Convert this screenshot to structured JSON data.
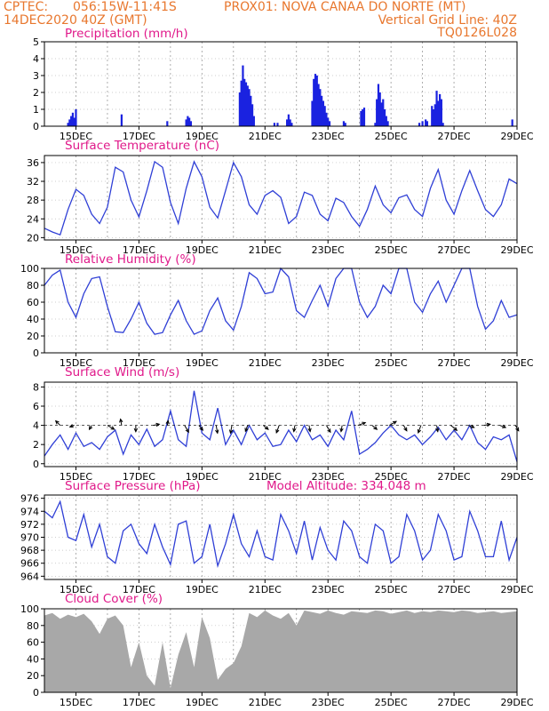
{
  "header": {
    "line1_left": "CPTEC:",
    "line1_coords": "056:15W-11:41S",
    "line1_station": "PROX01: NOVA CANAA DO NORTE (MT)",
    "line2_left": "14DEC2020 40Z (GMT)",
    "line2_right": "Vertical Grid Line: 40Z",
    "line3_right": "TQ0126L028"
  },
  "x_axis": {
    "labels": [
      "15DEC",
      "17DEC",
      "19DEC",
      "21DEC",
      "23DEC",
      "25DEC",
      "27DEC",
      "29DEC"
    ],
    "label_days": [
      15,
      17,
      19,
      21,
      23,
      25,
      27,
      29
    ],
    "grid_days": [
      15,
      16,
      17,
      18,
      19,
      20,
      21,
      22,
      23,
      24,
      25,
      26,
      27,
      28
    ],
    "range_days": [
      14,
      29
    ]
  },
  "chart_data": [
    {
      "type": "bar",
      "title": "Precipitation (mm/h)",
      "color": "#1a22e0",
      "ylim": [
        0,
        5
      ],
      "yticks": [
        0,
        1,
        2,
        3,
        4,
        5
      ],
      "x": [
        14.75,
        14.8,
        14.85,
        14.9,
        14.95,
        15.0,
        16.45,
        17.9,
        18.5,
        18.55,
        18.6,
        18.65,
        20.2,
        20.25,
        20.3,
        20.35,
        20.4,
        20.45,
        20.5,
        20.55,
        20.6,
        20.65,
        21.3,
        21.4,
        21.7,
        21.75,
        21.8,
        21.85,
        22.5,
        22.55,
        22.6,
        22.65,
        22.7,
        22.75,
        22.8,
        22.85,
        22.9,
        22.95,
        23.0,
        23.05,
        23.5,
        23.55,
        24.05,
        24.1,
        24.15,
        24.5,
        24.55,
        24.6,
        24.65,
        24.7,
        24.75,
        24.8,
        24.85,
        24.9,
        25.9,
        26.0,
        26.1,
        26.15,
        26.3,
        26.35,
        26.4,
        26.45,
        26.5,
        26.55,
        26.6,
        26.65,
        28.85
      ],
      "values": [
        0.2,
        0.4,
        0.6,
        0.8,
        0.5,
        1.0,
        0.7,
        0.3,
        0.4,
        0.6,
        0.5,
        0.3,
        2.0,
        2.7,
        3.6,
        2.8,
        2.6,
        2.4,
        2.2,
        1.8,
        1.3,
        0.6,
        0.2,
        0.2,
        0.4,
        0.7,
        0.4,
        0.2,
        1.5,
        2.8,
        3.1,
        3.0,
        2.5,
        2.2,
        1.8,
        1.5,
        1.2,
        0.8,
        0.5,
        0.3,
        0.3,
        0.2,
        0.9,
        1.0,
        1.1,
        0.2,
        1.6,
        2.5,
        2.0,
        1.4,
        1.6,
        1.0,
        0.6,
        0.3,
        0.2,
        0.3,
        0.4,
        0.3,
        1.2,
        1.0,
        1.3,
        2.1,
        1.5,
        1.9,
        1.6,
        0.2,
        0.4
      ]
    },
    {
      "type": "line",
      "title": "Surface Temperature (nC)",
      "color": "#2f3fd6",
      "ylim": [
        19.5,
        37.5
      ],
      "yticks": [
        20,
        24,
        28,
        32,
        36
      ],
      "x": [
        14.0,
        14.25,
        14.5,
        14.75,
        15.0,
        15.25,
        15.5,
        15.75,
        16.0,
        16.25,
        16.5,
        16.75,
        17.0,
        17.25,
        17.5,
        17.75,
        18.0,
        18.25,
        18.5,
        18.75,
        19.0,
        19.25,
        19.5,
        19.75,
        20.0,
        20.25,
        20.5,
        20.75,
        21.0,
        21.25,
        21.5,
        21.75,
        22.0,
        22.25,
        22.5,
        22.75,
        23.0,
        23.25,
        23.5,
        23.75,
        24.0,
        24.25,
        24.5,
        24.75,
        25.0,
        25.25,
        25.5,
        25.75,
        26.0,
        26.25,
        26.5,
        26.75,
        27.0,
        27.25,
        27.5,
        27.75,
        28.0,
        28.25,
        28.5,
        28.75,
        29.0
      ],
      "values": [
        22,
        21.2,
        20.6,
        26,
        30.3,
        29,
        25,
        23,
        26.5,
        35,
        34,
        28,
        24.4,
        30,
        36.2,
        35,
        27.5,
        23,
        30.5,
        36.2,
        33,
        26.5,
        24.2,
        30,
        36,
        33,
        27,
        25,
        29,
        30,
        28.6,
        23,
        24.5,
        29.7,
        29,
        25,
        23.6,
        28.4,
        27.5,
        24.5,
        22.4,
        26,
        31,
        27,
        25.3,
        28.5,
        29.1,
        26,
        24.5,
        30.5,
        34.5,
        28,
        25,
        30,
        34.3,
        30,
        26,
        24.5,
        27,
        32.5,
        31.5
      ]
    },
    {
      "type": "line",
      "title": "Relative Humidity (%)",
      "color": "#2f3fd6",
      "ylim": [
        0,
        100
      ],
      "yticks": [
        0,
        20,
        40,
        60,
        80,
        100
      ],
      "x": [
        14.0,
        14.25,
        14.5,
        14.75,
        15.0,
        15.25,
        15.5,
        15.75,
        16.0,
        16.25,
        16.5,
        16.75,
        17.0,
        17.25,
        17.5,
        17.75,
        18.0,
        18.25,
        18.5,
        18.75,
        19.0,
        19.25,
        19.5,
        19.75,
        20.0,
        20.25,
        20.5,
        20.75,
        21.0,
        21.25,
        21.5,
        21.75,
        22.0,
        22.25,
        22.5,
        22.75,
        23.0,
        23.25,
        23.5,
        23.75,
        24.0,
        24.25,
        24.5,
        24.75,
        25.0,
        25.25,
        25.5,
        25.75,
        26.0,
        26.25,
        26.5,
        26.75,
        27.0,
        27.25,
        27.5,
        27.75,
        28.0,
        28.25,
        28.5,
        28.75,
        29.0
      ],
      "values": [
        80,
        92,
        98,
        60,
        42,
        70,
        88,
        90,
        55,
        25,
        24,
        40,
        60,
        35,
        22,
        24,
        45,
        62,
        38,
        22,
        26,
        50,
        65,
        38,
        27,
        55,
        95,
        88,
        70,
        72,
        100,
        90,
        50,
        42,
        62,
        80,
        55,
        88,
        100,
        100,
        60,
        42,
        55,
        80,
        70,
        100,
        100,
        60,
        48,
        70,
        85,
        60,
        80,
        100,
        100,
        55,
        28,
        38,
        62,
        42,
        45
      ]
    },
    {
      "type": "line",
      "title": "Surface Wind (m/s)",
      "color": "#2f3fd6",
      "ylim": [
        -0.3,
        8.5
      ],
      "yticks": [
        0,
        2,
        4,
        6,
        8
      ],
      "x": [
        14.0,
        14.25,
        14.5,
        14.75,
        15.0,
        15.25,
        15.5,
        15.75,
        16.0,
        16.25,
        16.5,
        16.75,
        17.0,
        17.25,
        17.5,
        17.75,
        18.0,
        18.25,
        18.5,
        18.75,
        19.0,
        19.25,
        19.5,
        19.75,
        20.0,
        20.25,
        20.5,
        20.75,
        21.0,
        21.25,
        21.5,
        21.75,
        22.0,
        22.25,
        22.5,
        22.75,
        23.0,
        23.25,
        23.5,
        23.75,
        24.0,
        24.25,
        24.5,
        24.75,
        25.0,
        25.25,
        25.5,
        25.75,
        26.0,
        26.25,
        26.5,
        26.75,
        27.0,
        27.25,
        27.5,
        27.75,
        28.0,
        28.25,
        28.5,
        28.75,
        29.0
      ],
      "values": [
        0.8,
        2.0,
        3.0,
        1.5,
        3.2,
        1.8,
        2.2,
        1.5,
        2.8,
        3.5,
        1.0,
        3.0,
        2.0,
        3.6,
        1.8,
        2.5,
        5.5,
        2.5,
        1.8,
        7.6,
        3.2,
        2.5,
        5.8,
        2.0,
        3.5,
        2.0,
        4.0,
        2.5,
        3.2,
        1.8,
        2.0,
        3.5,
        2.3,
        4.0,
        2.5,
        3.0,
        1.8,
        3.5,
        2.5,
        5.5,
        1.0,
        1.5,
        2.2,
        3.2,
        4.0,
        3.0,
        2.5,
        3.0,
        2.0,
        2.8,
        3.8,
        2.5,
        3.5,
        2.5,
        4.0,
        2.2,
        1.5,
        2.8,
        2.5,
        3.0,
        0.2
      ],
      "vectors": {
        "y_level": 4,
        "x": [
          14.5,
          14.95,
          15.5,
          16.0,
          16.45,
          16.9,
          17.45,
          17.9,
          18.45,
          18.9,
          19.45,
          19.95,
          20.45,
          20.95,
          21.45,
          21.95,
          22.4,
          22.95,
          23.45,
          23.95,
          24.4,
          24.95,
          25.4,
          25.95,
          26.45,
          26.9,
          27.45,
          27.95,
          28.45,
          28.95
        ],
        "angle_deg": [
          135,
          200,
          240,
          -30,
          100,
          -90,
          10,
          80,
          -60,
          -50,
          -80,
          -100,
          -110,
          -40,
          -110,
          -100,
          -80,
          -60,
          -100,
          20,
          -40,
          30,
          -60,
          -110,
          -80,
          -40,
          -20,
          10,
          -20,
          -60
        ],
        "length_days": [
          0.2,
          0.15,
          0.15,
          0.25,
          0.2,
          0.2,
          0.2,
          0.15,
          0.25,
          0.2,
          0.25,
          0.25,
          0.2,
          0.2,
          0.25,
          0.2,
          0.2,
          0.25,
          0.2,
          0.25,
          0.2,
          0.25,
          0.2,
          0.25,
          0.2,
          0.25,
          0.2,
          0.2,
          0.2,
          0.2
        ]
      }
    },
    {
      "type": "line",
      "title": "Surface Pressure (hPa)",
      "subtitle": "Model Altitude: 334.048 m",
      "color": "#2f3fd6",
      "ylim": [
        963.5,
        976.5
      ],
      "yticks": [
        964,
        966,
        968,
        970,
        972,
        974,
        976
      ],
      "x": [
        14.0,
        14.25,
        14.5,
        14.75,
        15.0,
        15.25,
        15.5,
        15.75,
        16.0,
        16.25,
        16.5,
        16.75,
        17.0,
        17.25,
        17.5,
        17.75,
        18.0,
        18.25,
        18.5,
        18.75,
        19.0,
        19.25,
        19.5,
        19.75,
        20.0,
        20.25,
        20.5,
        20.75,
        21.0,
        21.25,
        21.5,
        21.75,
        22.0,
        22.25,
        22.5,
        22.75,
        23.0,
        23.25,
        23.5,
        23.75,
        24.0,
        24.25,
        24.5,
        24.75,
        25.0,
        25.25,
        25.5,
        25.75,
        26.0,
        26.25,
        26.5,
        26.75,
        27.0,
        27.25,
        27.5,
        27.75,
        28.0,
        28.25,
        28.5,
        28.75,
        29.0
      ],
      "values": [
        974,
        973,
        975.5,
        970,
        969.5,
        973.5,
        968.5,
        972,
        967,
        966,
        971,
        972,
        969,
        967.5,
        972,
        968.5,
        965.8,
        972,
        972.5,
        966,
        967,
        972,
        965.6,
        969,
        973.5,
        969,
        967,
        971,
        967,
        966.5,
        973.5,
        971,
        967.5,
        972.5,
        966.5,
        971.5,
        968,
        966.5,
        972.5,
        971,
        967,
        966,
        972,
        971,
        966,
        967,
        973.5,
        971,
        966.5,
        968,
        973.5,
        971,
        966.5,
        967,
        974,
        971,
        967,
        967,
        972.5,
        966.5,
        970
      ]
    },
    {
      "type": "area",
      "title": "Cloud Cover (%)",
      "color": "#a8a8a8",
      "ylim": [
        0,
        100
      ],
      "yticks": [
        0,
        20,
        40,
        60,
        80,
        100
      ],
      "x": [
        14.0,
        14.25,
        14.5,
        14.75,
        15.0,
        15.25,
        15.5,
        15.75,
        16.0,
        16.25,
        16.5,
        16.75,
        17.0,
        17.25,
        17.5,
        17.75,
        18.0,
        18.25,
        18.5,
        18.75,
        19.0,
        19.25,
        19.5,
        19.75,
        20.0,
        20.25,
        20.5,
        20.75,
        21.0,
        21.25,
        21.5,
        21.75,
        22.0,
        22.25,
        22.5,
        22.75,
        23.0,
        23.25,
        23.5,
        23.75,
        24.0,
        24.25,
        24.5,
        24.75,
        25.0,
        25.25,
        25.5,
        25.75,
        26.0,
        26.25,
        26.5,
        26.75,
        27.0,
        27.25,
        27.5,
        27.75,
        28.0,
        28.25,
        28.5,
        28.75,
        29.0
      ],
      "values": [
        92,
        95,
        88,
        93,
        90,
        94,
        85,
        70,
        88,
        92,
        80,
        30,
        60,
        20,
        8,
        60,
        5,
        45,
        72,
        30,
        90,
        65,
        15,
        28,
        35,
        55,
        95,
        90,
        98,
        92,
        88,
        95,
        80,
        98,
        96,
        94,
        98,
        95,
        93,
        97,
        96,
        95,
        98,
        97,
        94,
        96,
        98,
        95,
        97,
        96,
        98,
        97,
        96,
        98,
        97,
        95,
        96,
        97,
        95,
        96,
        97
      ]
    }
  ]
}
